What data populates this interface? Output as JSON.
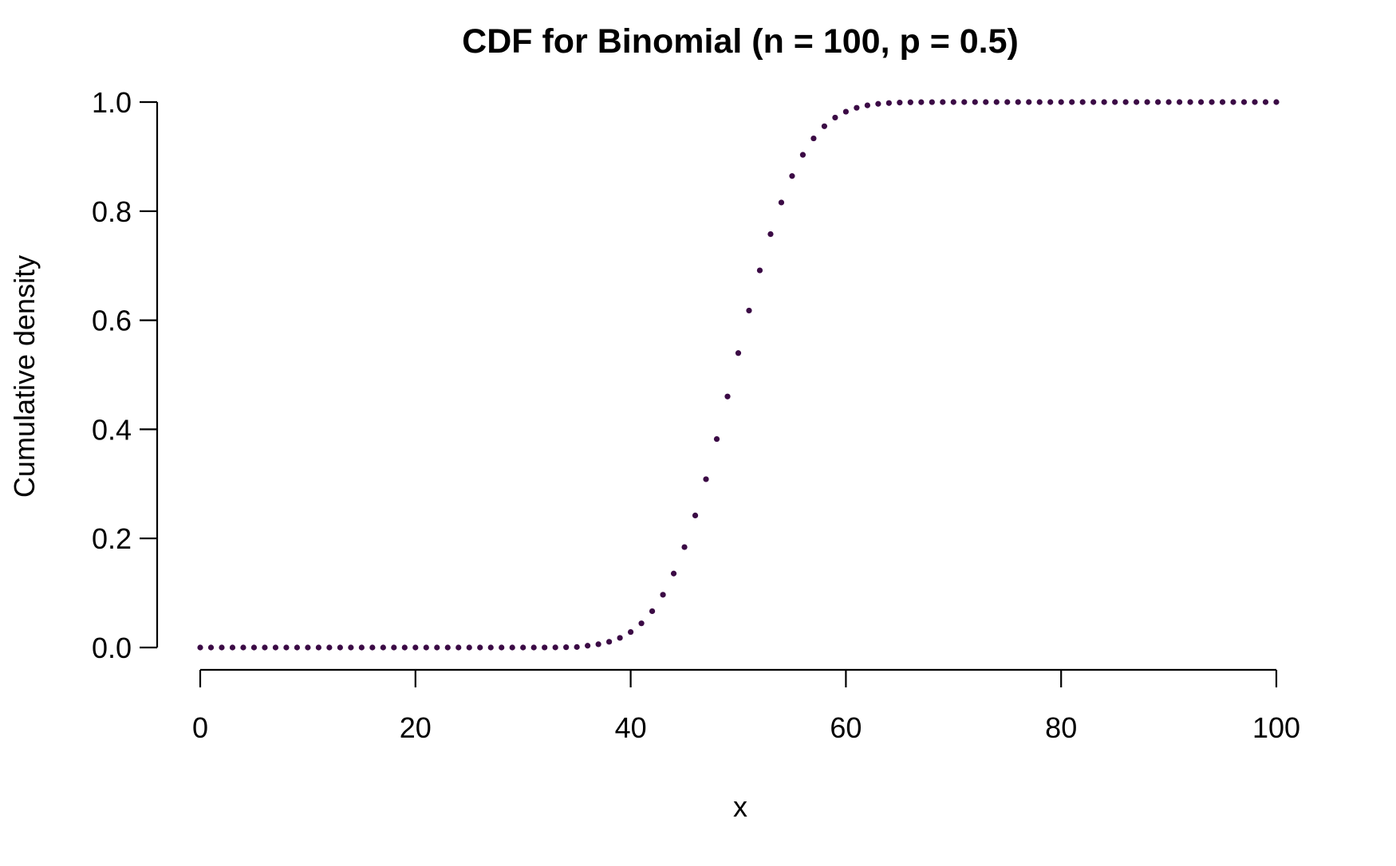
{
  "chart_data": {
    "type": "scatter",
    "title": "CDF for Binomial (n = 100, p = 0.5)",
    "xlabel": "x",
    "ylabel": "Cumulative density",
    "xlim": [
      0,
      100
    ],
    "ylim": [
      0,
      1
    ],
    "grid": false,
    "legend": "none",
    "point_color": "#3b0a45",
    "x_ticks": [
      0,
      20,
      40,
      60,
      80,
      100
    ],
    "x_tick_labels": [
      "0",
      "20",
      "40",
      "60",
      "80",
      "100"
    ],
    "y_ticks": [
      0,
      0.2,
      0.4,
      0.6,
      0.8,
      1
    ],
    "y_tick_labels": [
      "0.0",
      "0.2",
      "0.4",
      "0.6",
      "0.8",
      "1.0"
    ],
    "series": [
      {
        "x": [
          0,
          1,
          2,
          3,
          4,
          5,
          6,
          7,
          8,
          9,
          10,
          11,
          12,
          13,
          14,
          15,
          16,
          17,
          18,
          19,
          20,
          21,
          22,
          23,
          24,
          25,
          26,
          27,
          28,
          29,
          30,
          31,
          32,
          33,
          34,
          35,
          36,
          37,
          38,
          39,
          40,
          41,
          42,
          43,
          44,
          45,
          46,
          47,
          48,
          49,
          50,
          51,
          52,
          53,
          54,
          55,
          56,
          57,
          58,
          59,
          60,
          61,
          62,
          63,
          64,
          65,
          66,
          67,
          68,
          69,
          70,
          71,
          72,
          73,
          74,
          75,
          76,
          77,
          78,
          79,
          80,
          81,
          82,
          83,
          84,
          85,
          86,
          87,
          88,
          89,
          90,
          91,
          92,
          93,
          94,
          95,
          96,
          97,
          98,
          99,
          100
        ],
        "values": [
          0,
          0,
          0,
          0,
          0,
          0,
          0,
          0,
          0,
          0,
          0,
          0,
          0,
          0,
          0,
          0,
          0,
          0,
          0,
          0,
          0,
          0,
          0,
          0,
          0,
          0,
          0,
          0,
          0,
          0,
          0,
          0,
          0.0001,
          0.0002,
          0.0005,
          0.0009,
          0.0033,
          0.006,
          0.0105,
          0.0176,
          0.0284,
          0.0443,
          0.0666,
          0.0967,
          0.1356,
          0.1841,
          0.2421,
          0.3086,
          0.3822,
          0.4602,
          0.5398,
          0.6178,
          0.6914,
          0.7579,
          0.8159,
          0.8644,
          0.9033,
          0.9334,
          0.9557,
          0.9716,
          0.9824,
          0.9895,
          0.994,
          0.9967,
          0.9982,
          0.9991,
          0.9996,
          0.9998,
          0.9999,
          1,
          1,
          1,
          1,
          1,
          1,
          1,
          1,
          1,
          1,
          1,
          1,
          1,
          1,
          1,
          1,
          1,
          1,
          1,
          1,
          1,
          1,
          1,
          1,
          1,
          1,
          1,
          1,
          1,
          1,
          1,
          1
        ]
      }
    ]
  }
}
